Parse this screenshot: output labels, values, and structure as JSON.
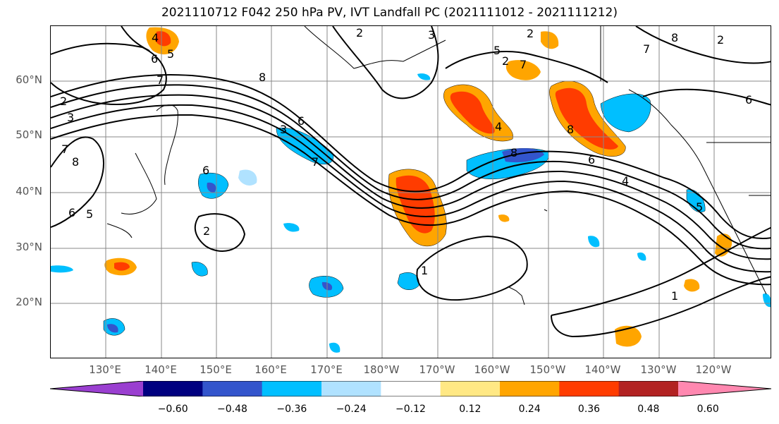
{
  "title": "2021110712 F042 250 hPa PV, IVT Landfall PC (2021111012 - 2021111212)",
  "map": {
    "region": "North Pacific",
    "lat_labels": [
      "60°N",
      "50°N",
      "40°N",
      "30°N",
      "20°N"
    ],
    "lon_labels": [
      "130°E",
      "140°E",
      "150°E",
      "160°E",
      "170°E",
      "180°W",
      "170°W",
      "160°W",
      "150°W",
      "140°W",
      "130°W",
      "120°W"
    ],
    "contour_labels": [
      "4",
      "5",
      "6",
      "7",
      "2",
      "3",
      "7",
      "2",
      "8",
      "6",
      "8",
      "3",
      "2",
      "2",
      "5",
      "7",
      "4",
      "8",
      "8",
      "7",
      "2",
      "6",
      "6",
      "8",
      "6",
      "4",
      "5",
      "5",
      "2",
      "1",
      "1",
      "3",
      "6",
      "7"
    ],
    "grid": true,
    "colors": {
      "contour": "#000000",
      "grid": "#888888",
      "coast": "#000000"
    }
  },
  "colorbar": {
    "tick_labels": [
      "−0.60",
      "−0.48",
      "−0.36",
      "−0.24",
      "−0.12",
      "0.12",
      "0.24",
      "0.36",
      "0.48",
      "0.60"
    ],
    "colors": [
      "#9a3fd0",
      "#000080",
      "#3355cc",
      "#00bfff",
      "#b0e2ff",
      "#ffffff",
      "#ffe884",
      "#ffa500",
      "#ff3c00",
      "#b22222",
      "#ff88b0"
    ],
    "extend": "both"
  }
}
